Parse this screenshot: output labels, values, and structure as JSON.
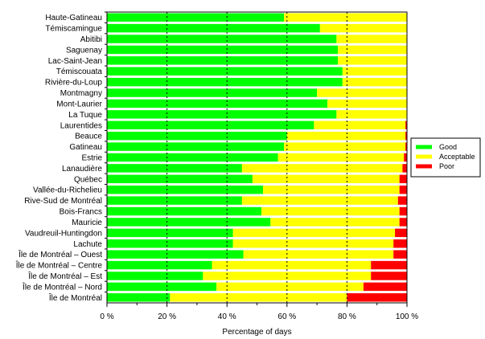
{
  "chart_data": {
    "type": "bar",
    "orientation": "horizontal",
    "stacked": true,
    "categories": [
      "Haute-Gatineau",
      "Témiscamingue",
      "Abitibi",
      "Saguenay",
      "Lac-Saint-Jean",
      "Témiscouata",
      "Rivière-du-Loup",
      "Montmagny",
      "Mont-Laurier",
      "La Tuque",
      "Laurentides",
      "Beauce",
      "Gatineau",
      "Estrie",
      "Lanaudière",
      "Québec",
      "Vallée-du-Richelieu",
      "Rive-Sud de Montréal",
      "Bois-Francs",
      "Mauricie",
      "Vaudreuil-Huntingdon",
      "Lachute",
      "Île de Montréal – Ouest",
      "Île de Montréal – Centre",
      "Île de Montréal – Est",
      "Île de Montréal – Nord",
      "Île de Montréal"
    ],
    "series": [
      {
        "name": "Good",
        "color": "#00ff00",
        "values": [
          59,
          71,
          76.5,
          77,
          77,
          78.5,
          78.5,
          70,
          73.5,
          76.5,
          69,
          60,
          59,
          57,
          45,
          48.5,
          52,
          45,
          51.5,
          54.5,
          42,
          42,
          45.5,
          35,
          32,
          36.5,
          21
        ]
      },
      {
        "name": "Acceptable",
        "color": "#ffff00",
        "values": [
          41,
          29,
          23.5,
          23,
          23,
          21.5,
          21.5,
          30,
          26.5,
          23.5,
          30.5,
          39.5,
          40.5,
          42,
          53.5,
          49,
          45.5,
          52,
          46,
          43,
          54,
          53.5,
          50,
          53,
          56,
          49,
          59
        ]
      },
      {
        "name": "Poor",
        "color": "#ff0000",
        "values": [
          0,
          0,
          0,
          0,
          0,
          0,
          0,
          0,
          0,
          0,
          0.5,
          0.5,
          0.5,
          1,
          1.5,
          2.5,
          2.5,
          3,
          2.5,
          2.5,
          4,
          4.5,
          4.5,
          12,
          12,
          14.5,
          20
        ]
      }
    ],
    "xlabel": "Percentage of days",
    "ylabel": "",
    "xlim": [
      0,
      100
    ],
    "xticks": [
      0,
      20,
      40,
      60,
      80,
      100
    ],
    "xtick_labels": [
      "0 %",
      "20 %",
      "40 %",
      "60 %",
      "80 %",
      "100 %"
    ],
    "grid": "dashed vertical lines at 20, 40, 60, 80",
    "legend_position": "right"
  }
}
